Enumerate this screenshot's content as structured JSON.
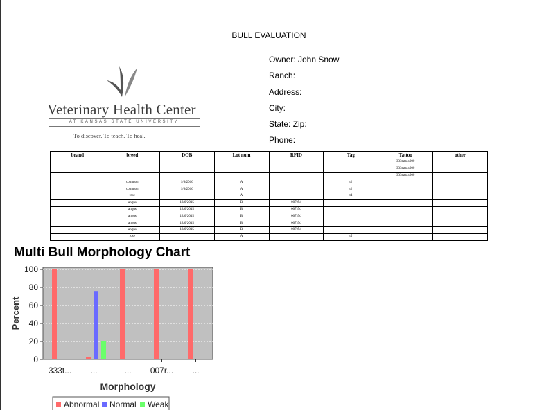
{
  "document": {
    "title": "BULL EVALUATION"
  },
  "logo": {
    "name": "Veterinary Health Center",
    "subtitle": "AT KANSAS STATE UNIVERSITY",
    "tagline": "To discover. To teach. To heal."
  },
  "owner_info": {
    "owner": "Owner: John Snow",
    "ranch": "Ranch:",
    "address": "Address:",
    "city": "City:",
    "state_zip": "State: Zip:",
    "phone": "Phone:"
  },
  "table": {
    "headers": [
      "brand",
      "breed",
      "DOB",
      "Lot num",
      "RFID",
      "Tag",
      "Tattoo",
      "other"
    ],
    "rows": [
      [
        "",
        "",
        "",
        "",
        "",
        "",
        "333tattoo900",
        ""
      ],
      [
        "",
        "",
        "",
        "",
        "",
        "",
        "333tattoo900",
        ""
      ],
      [
        "",
        "",
        "",
        "",
        "",
        "",
        "333tattoo900",
        ""
      ],
      [
        "",
        "common",
        "1/6/2016",
        "A",
        "",
        "t2",
        "",
        ""
      ],
      [
        "",
        "common",
        "1/6/2016",
        "A",
        "",
        "t2",
        "",
        ""
      ],
      [
        "",
        "rose",
        "",
        "A",
        "",
        "t4",
        "",
        ""
      ],
      [
        "",
        "angus",
        "12/6/2015",
        "B",
        "007rfid",
        "",
        "",
        ""
      ],
      [
        "",
        "angus",
        "12/6/2015",
        "B",
        "007rfid",
        "",
        "",
        ""
      ],
      [
        "",
        "angus",
        "12/6/2015",
        "B",
        "007rfid",
        "",
        "",
        ""
      ],
      [
        "",
        "angus",
        "12/6/2015",
        "B",
        "007rfid",
        "",
        "",
        ""
      ],
      [
        "",
        "angus",
        "12/6/2015",
        "B",
        "007rfid",
        "",
        "",
        ""
      ],
      [
        "",
        "rose",
        "",
        "A",
        "",
        "t5",
        "",
        ""
      ]
    ]
  },
  "chart_title": "Multi Bull Morphology Chart",
  "chart_data": {
    "type": "bar",
    "title": "Multi Bull Morphology Chart",
    "xlabel": "Morphology",
    "ylabel": "Percent",
    "ylim": [
      0,
      100
    ],
    "yticks": [
      0,
      20,
      40,
      60,
      80,
      100
    ],
    "categories": [
      "",
      "",
      "",
      "",
      ""
    ],
    "tick_labels": [
      "333t...",
      "...",
      "...",
      "007r...",
      "..."
    ],
    "series": [
      {
        "name": "Abnormal",
        "color": "#ff6a6a",
        "values": [
          100,
          3,
          100,
          100,
          100
        ]
      },
      {
        "name": "Normal",
        "color": "#6a6aff",
        "values": [
          0,
          76,
          0,
          0,
          0
        ]
      },
      {
        "name": "Weak",
        "color": "#6aff6a",
        "values": [
          0,
          20,
          0,
          0,
          0
        ]
      }
    ],
    "plot_background": "#c0c0c0",
    "grid": true,
    "legend_position": "bottom"
  }
}
